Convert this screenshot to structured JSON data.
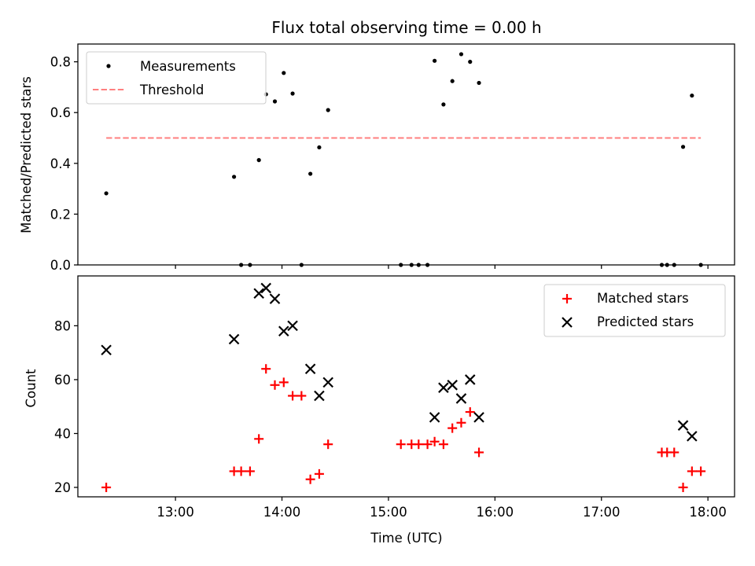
{
  "chart_data": [
    {
      "type": "scatter",
      "title": "Flux total observing time = 0.00 h",
      "xlabel": "",
      "ylabel": "Matched/Predicted stars",
      "ylim": [
        0,
        0.87
      ],
      "yticks": [
        "0.0",
        "0.2",
        "0.4",
        "0.6",
        "0.8"
      ],
      "grid": false,
      "legend_position": "top-left",
      "series": [
        {
          "name": "Measurements",
          "marker": "dot",
          "color": "#000000",
          "points": [
            {
              "x": "12:21",
              "y": 0.282
            },
            {
              "x": "13:33",
              "y": 0.347
            },
            {
              "x": "13:37",
              "y": 0.0
            },
            {
              "x": "13:42",
              "y": 0.0
            },
            {
              "x": "13:47",
              "y": 0.413
            },
            {
              "x": "13:51",
              "y": 0.672
            },
            {
              "x": "13:56",
              "y": 0.644
            },
            {
              "x": "14:01",
              "y": 0.756
            },
            {
              "x": "14:06",
              "y": 0.675
            },
            {
              "x": "14:11",
              "y": 0.0
            },
            {
              "x": "14:16",
              "y": 0.359
            },
            {
              "x": "14:21",
              "y": 0.463
            },
            {
              "x": "14:26",
              "y": 0.61
            },
            {
              "x": "15:07",
              "y": 0.0
            },
            {
              "x": "15:13",
              "y": 0.0
            },
            {
              "x": "15:17",
              "y": 0.0
            },
            {
              "x": "15:22",
              "y": 0.0
            },
            {
              "x": "15:26",
              "y": 0.804
            },
            {
              "x": "15:31",
              "y": 0.632
            },
            {
              "x": "15:36",
              "y": 0.724
            },
            {
              "x": "15:41",
              "y": 0.83
            },
            {
              "x": "15:46",
              "y": 0.8
            },
            {
              "x": "15:51",
              "y": 0.717
            },
            {
              "x": "17:34",
              "y": 0.0
            },
            {
              "x": "17:37",
              "y": 0.0
            },
            {
              "x": "17:41",
              "y": 0.0
            },
            {
              "x": "17:46",
              "y": 0.465
            },
            {
              "x": "17:51",
              "y": 0.667
            },
            {
              "x": "17:56",
              "y": 0.0
            }
          ]
        },
        {
          "name": "Threshold",
          "marker": "dashed-line",
          "color": "#ff7f7f",
          "x_start": "12:21",
          "x_end": "17:56",
          "y": 0.5
        }
      ]
    },
    {
      "type": "scatter",
      "title": "",
      "xlabel": "Time (UTC)",
      "ylabel": "Count",
      "ylim": [
        16.5,
        98.5
      ],
      "yticks": [
        "20",
        "40",
        "60",
        "80"
      ],
      "xlim": [
        "12:05",
        "18:15"
      ],
      "xticks": [
        "13:00",
        "14:00",
        "15:00",
        "16:00",
        "17:00",
        "18:00"
      ],
      "grid": false,
      "legend_position": "top-right",
      "series": [
        {
          "name": "Matched stars",
          "marker": "plus",
          "color": "#ff0000",
          "points": [
            {
              "x": "12:21",
              "y": 20
            },
            {
              "x": "13:33",
              "y": 26
            },
            {
              "x": "13:37",
              "y": 26
            },
            {
              "x": "13:42",
              "y": 26
            },
            {
              "x": "13:47",
              "y": 38
            },
            {
              "x": "13:51",
              "y": 64
            },
            {
              "x": "13:56",
              "y": 58
            },
            {
              "x": "14:01",
              "y": 59
            },
            {
              "x": "14:06",
              "y": 54
            },
            {
              "x": "14:11",
              "y": 54
            },
            {
              "x": "14:16",
              "y": 23
            },
            {
              "x": "14:21",
              "y": 25
            },
            {
              "x": "14:26",
              "y": 36
            },
            {
              "x": "15:07",
              "y": 36
            },
            {
              "x": "15:13",
              "y": 36
            },
            {
              "x": "15:17",
              "y": 36
            },
            {
              "x": "15:22",
              "y": 36
            },
            {
              "x": "15:26",
              "y": 37
            },
            {
              "x": "15:31",
              "y": 36
            },
            {
              "x": "15:36",
              "y": 42
            },
            {
              "x": "15:41",
              "y": 44
            },
            {
              "x": "15:46",
              "y": 48
            },
            {
              "x": "15:51",
              "y": 33
            },
            {
              "x": "17:34",
              "y": 33
            },
            {
              "x": "17:37",
              "y": 33
            },
            {
              "x": "17:41",
              "y": 33
            },
            {
              "x": "17:46",
              "y": 20
            },
            {
              "x": "17:51",
              "y": 26
            },
            {
              "x": "17:56",
              "y": 26
            }
          ]
        },
        {
          "name": "Predicted stars",
          "marker": "x",
          "color": "#000000",
          "points": [
            {
              "x": "12:21",
              "y": 71
            },
            {
              "x": "13:33",
              "y": 75
            },
            {
              "x": "13:47",
              "y": 92
            },
            {
              "x": "13:51",
              "y": 94
            },
            {
              "x": "13:56",
              "y": 90
            },
            {
              "x": "14:01",
              "y": 78
            },
            {
              "x": "14:06",
              "y": 80
            },
            {
              "x": "14:16",
              "y": 64
            },
            {
              "x": "14:21",
              "y": 54
            },
            {
              "x": "14:26",
              "y": 59
            },
            {
              "x": "15:26",
              "y": 46
            },
            {
              "x": "15:31",
              "y": 57
            },
            {
              "x": "15:36",
              "y": 58
            },
            {
              "x": "15:41",
              "y": 53
            },
            {
              "x": "15:46",
              "y": 60
            },
            {
              "x": "15:51",
              "y": 46
            },
            {
              "x": "17:46",
              "y": 43
            },
            {
              "x": "17:51",
              "y": 39
            }
          ]
        }
      ]
    }
  ]
}
